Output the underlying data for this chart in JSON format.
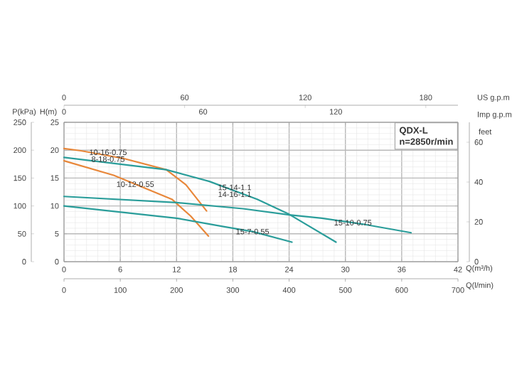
{
  "chart_data": {
    "type": "line",
    "xlabel": "Q(m³/h)",
    "ylabel": "H(m)",
    "y2label": "feet",
    "y3label": "P(kPa)",
    "x2label": "US g.p.m",
    "xlim": [
      0,
      42
    ],
    "xticks": [
      0,
      6,
      12,
      18,
      24,
      30,
      36,
      42
    ],
    "ylim": [
      0,
      25
    ],
    "yticks": [
      0,
      5,
      10,
      15,
      20,
      25
    ],
    "x2lim": [
      0,
      196
    ],
    "x2ticks": [
      0,
      60,
      120,
      180
    ],
    "y2lim": [
      0,
      70
    ],
    "y2ticks": [
      0,
      20,
      40,
      60
    ],
    "y3lim": [
      0,
      250
    ],
    "y3ticks": [
      0,
      50,
      100,
      150,
      200,
      250
    ],
    "grid": true,
    "series": [
      {
        "color": "#e8873a",
        "x": [
          0,
          1.8,
          6.4,
          10.9,
          13,
          15.2
        ],
        "values": [
          20.3,
          19.9,
          18.5,
          16.5,
          13.8,
          9.1
        ]
      },
      {
        "color": "#e8873a",
        "x": [
          0,
          5.3,
          11.5,
          13.5,
          15.4
        ],
        "values": [
          18.1,
          15.5,
          11.2,
          8.2,
          4.6
        ]
      },
      {
        "color": "#2a9d9a",
        "x": [
          0,
          10.9,
          15.5,
          20.6,
          24,
          29
        ],
        "values": [
          18.7,
          16.5,
          14.4,
          11.2,
          8.5,
          3.5
        ]
      },
      {
        "color": "#2a9d9a",
        "x": [
          0,
          12,
          19.1,
          24,
          27.5,
          32,
          37
        ],
        "values": [
          11.7,
          10.6,
          9.5,
          8.4,
          7.8,
          6.7,
          5.2
        ]
      },
      {
        "color": "#2a9d9a",
        "x": [
          0,
          12,
          17,
          20.1,
          24.3
        ],
        "values": [
          10,
          7.8,
          6.3,
          5.4,
          3.5
        ]
      }
    ],
    "annotations": [
      "QDX-L",
      "n=2850r/min",
      "0",
      "60",
      "120",
      "Imp g.p.m",
      "0",
      "100",
      "200",
      "300",
      "400",
      "500",
      "600",
      "700",
      "Q(l/min)",
      {
        "text": "10-16-0.75",
        "x": 4.7,
        "y": 19.0
      },
      {
        "text": "8-18-0.75",
        "x": 4.7,
        "y": 19.0
      },
      {
        "text": "10-12-0.55",
        "x": 7.6,
        "y": 13.9
      },
      {
        "text": "15-14-1.1",
        "x": 18.2,
        "y": 12.7
      },
      {
        "text": "14-16-1.1",
        "x": 18.2,
        "y": 12.7
      },
      {
        "text": "15-7-0.55",
        "x": 20.1,
        "y": 5.4
      },
      {
        "text": "15-10-0.75",
        "x": 30.8,
        "y": 7.0
      }
    ]
  }
}
